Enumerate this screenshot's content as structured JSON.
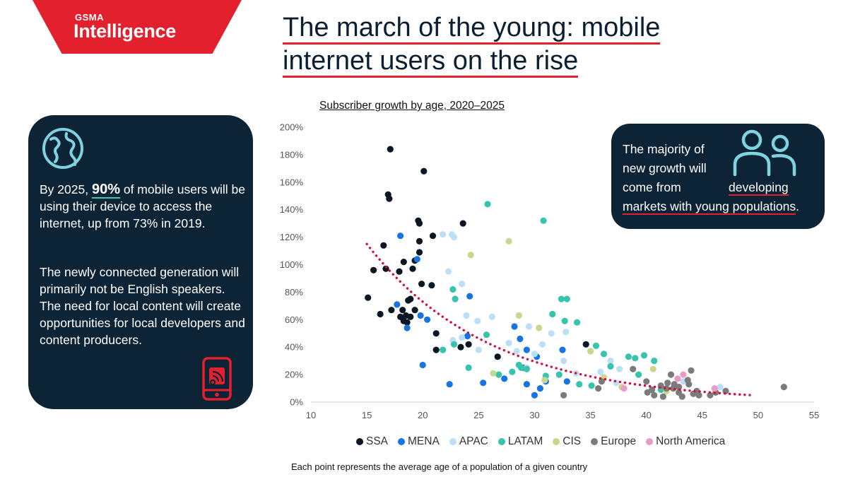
{
  "brand": {
    "small": "GSMA",
    "big": "Intelligence"
  },
  "headline": {
    "line1": "The march of the young: mobile",
    "line2": "internet users on the rise"
  },
  "left_card": {
    "text1_pre": "By 2025, ",
    "text1_highlight": "90%",
    "text1_post": " of mobile users will be using their device to access the internet, up from 73% in 2019.",
    "text2": "The newly connected generation will primarily not be English speakers. The need for local content will create opportunities for local developers and content producers."
  },
  "right_card": {
    "text_pre": "The majority of new growth will come from ",
    "text_underlined": "developing markets with young populations",
    "text_post": "."
  },
  "footnote": "Each point represents the average age of a population of a given country",
  "colors": {
    "SSA": "#0b1722",
    "MENA": "#1874e0",
    "APAC": "#bcdff6",
    "LATAM": "#37c3ad",
    "CIS": "#c9d78c",
    "Europe": "#7b7b7b",
    "North America": "#e89ac8",
    "trend": "#d0103a",
    "brand": "#e2202e",
    "card": "#0d2436"
  },
  "chart_data": {
    "type": "scatter",
    "title": "Subscriber growth by age, 2020–2025",
    "xlim": [
      10,
      55
    ],
    "ylim": [
      0,
      200
    ],
    "x_ticks": [
      "10",
      "15",
      "20",
      "25",
      "30",
      "35",
      "40",
      "45",
      "50",
      "55"
    ],
    "y_ticks": [
      "0%",
      "20%",
      "40%",
      "60%",
      "80%",
      "100%",
      "120%",
      "140%",
      "160%",
      "180%",
      "200%"
    ],
    "grid": false,
    "legend_position": "bottom",
    "trendline": {
      "style": "dotted",
      "from": [
        15,
        115
      ],
      "to": [
        49.5,
        5
      ]
    },
    "series": [
      {
        "name": "SSA",
        "points": [
          [
            17.1,
            184
          ],
          [
            20.1,
            168
          ],
          [
            16.9,
            151
          ],
          [
            17.0,
            148
          ],
          [
            19.6,
            132
          ],
          [
            19.7,
            130
          ],
          [
            23.6,
            130
          ],
          [
            19.7,
            117
          ],
          [
            20.9,
            121
          ],
          [
            16.5,
            114
          ],
          [
            19.7,
            109
          ],
          [
            19.3,
            103
          ],
          [
            18.3,
            102
          ],
          [
            16.7,
            97
          ],
          [
            15.6,
            96
          ],
          [
            17.9,
            95
          ],
          [
            19.1,
            97
          ],
          [
            19.9,
            86
          ],
          [
            20.8,
            85
          ],
          [
            15.1,
            76
          ],
          [
            17.2,
            67
          ],
          [
            18.9,
            75
          ],
          [
            18.7,
            74
          ],
          [
            19.3,
            67
          ],
          [
            16.2,
            64
          ],
          [
            18.2,
            67
          ],
          [
            18.0,
            62
          ],
          [
            18.5,
            63
          ],
          [
            18.9,
            62
          ],
          [
            18.3,
            59
          ],
          [
            18.6,
            58
          ],
          [
            21.2,
            50
          ],
          [
            24.1,
            42
          ],
          [
            23.4,
            40
          ],
          [
            21.2,
            38
          ],
          [
            26.7,
            33
          ],
          [
            34.6,
            42
          ]
        ]
      },
      {
        "name": "MENA",
        "points": [
          [
            18.0,
            121
          ],
          [
            19.5,
            104
          ],
          [
            17.7,
            71
          ],
          [
            19.8,
            63
          ],
          [
            20.4,
            60
          ],
          [
            18.6,
            54
          ],
          [
            24.2,
            77
          ],
          [
            24.0,
            48
          ],
          [
            28.2,
            55
          ],
          [
            28.7,
            46
          ],
          [
            29.3,
            38
          ],
          [
            30.2,
            33
          ],
          [
            32.5,
            38
          ],
          [
            20.0,
            27
          ],
          [
            22.4,
            13
          ],
          [
            25.4,
            14
          ],
          [
            27.3,
            17
          ],
          [
            29.0,
            25
          ],
          [
            29.3,
            13
          ],
          [
            30.5,
            10
          ],
          [
            30.0,
            5
          ],
          [
            31.0,
            15
          ],
          [
            32.9,
            15
          ]
        ]
      },
      {
        "name": "APAC",
        "points": [
          [
            21.8,
            122
          ],
          [
            22.6,
            122
          ],
          [
            22.8,
            120
          ],
          [
            23.5,
            86
          ],
          [
            22.3,
            95
          ],
          [
            23.9,
            63
          ],
          [
            24.9,
            59
          ],
          [
            26.2,
            62
          ],
          [
            22.7,
            45
          ],
          [
            23.5,
            47
          ],
          [
            25.0,
            38
          ],
          [
            27.7,
            43
          ],
          [
            28.4,
            37
          ],
          [
            29.3,
            25
          ],
          [
            29.5,
            55
          ],
          [
            30.7,
            42
          ],
          [
            30.0,
            35
          ],
          [
            31.5,
            50
          ],
          [
            32.6,
            30
          ],
          [
            32.8,
            51
          ],
          [
            33.7,
            21
          ],
          [
            35.9,
            22
          ],
          [
            36.8,
            30
          ],
          [
            37.3,
            14
          ],
          [
            37.6,
            24
          ],
          [
            43.3,
            15
          ],
          [
            46.6,
            11
          ]
        ]
      },
      {
        "name": "LATAM",
        "points": [
          [
            25.8,
            144
          ],
          [
            30.8,
            132
          ],
          [
            22.7,
            82
          ],
          [
            22.9,
            75
          ],
          [
            21.8,
            38
          ],
          [
            22.8,
            42
          ],
          [
            24.1,
            25
          ],
          [
            25.7,
            49
          ],
          [
            26.8,
            20
          ],
          [
            28.0,
            22
          ],
          [
            28.8,
            25
          ],
          [
            29.3,
            24
          ],
          [
            28.6,
            27
          ],
          [
            31.6,
            64
          ],
          [
            32.4,
            75
          ],
          [
            32.9,
            75
          ],
          [
            32.7,
            59
          ],
          [
            34.0,
            13
          ],
          [
            33.8,
            58
          ],
          [
            35.5,
            41
          ],
          [
            36.2,
            35
          ],
          [
            38.4,
            33
          ],
          [
            39.0,
            32
          ],
          [
            39.8,
            34
          ],
          [
            40.7,
            30
          ],
          [
            35.1,
            12
          ],
          [
            31.0,
            19
          ],
          [
            32.2,
            20
          ],
          [
            36.8,
            26
          ],
          [
            39.3,
            20
          ],
          [
            41.3,
            9
          ]
        ]
      },
      {
        "name": "CIS",
        "points": [
          [
            27.7,
            117
          ],
          [
            24.3,
            107
          ],
          [
            28.6,
            63
          ],
          [
            30.4,
            54
          ],
          [
            26.3,
            21
          ],
          [
            30.9,
            16
          ],
          [
            35.0,
            37
          ],
          [
            36.2,
            18
          ],
          [
            37.8,
            11
          ],
          [
            40.6,
            24
          ],
          [
            41.8,
            8
          ]
        ]
      },
      {
        "name": "Europe",
        "points": [
          [
            52.3,
            11
          ],
          [
            38.8,
            24
          ],
          [
            42.2,
            20
          ],
          [
            42.9,
            11
          ],
          [
            44.0,
            23
          ],
          [
            43.7,
            16
          ],
          [
            41.3,
            12
          ],
          [
            41.8,
            10
          ],
          [
            40.5,
            9
          ],
          [
            42.4,
            10
          ],
          [
            42.9,
            7
          ],
          [
            43.2,
            4
          ],
          [
            44.2,
            6
          ],
          [
            44.5,
            8
          ],
          [
            41.9,
            14
          ],
          [
            42.5,
            13
          ],
          [
            43.8,
            13
          ],
          [
            45.7,
            5
          ],
          [
            46.2,
            7
          ],
          [
            47.1,
            8
          ],
          [
            40.7,
            5
          ],
          [
            41.5,
            4
          ],
          [
            44.7,
            5
          ],
          [
            36.0,
            15
          ],
          [
            32.6,
            5
          ],
          [
            35.7,
            10
          ],
          [
            40.0,
            15
          ],
          [
            40.1,
            7
          ]
        ]
      },
      {
        "name": "North America",
        "points": [
          [
            38.0,
            10
          ],
          [
            42.8,
            17
          ],
          [
            43.3,
            20
          ],
          [
            46.1,
            10
          ]
        ]
      }
    ]
  }
}
